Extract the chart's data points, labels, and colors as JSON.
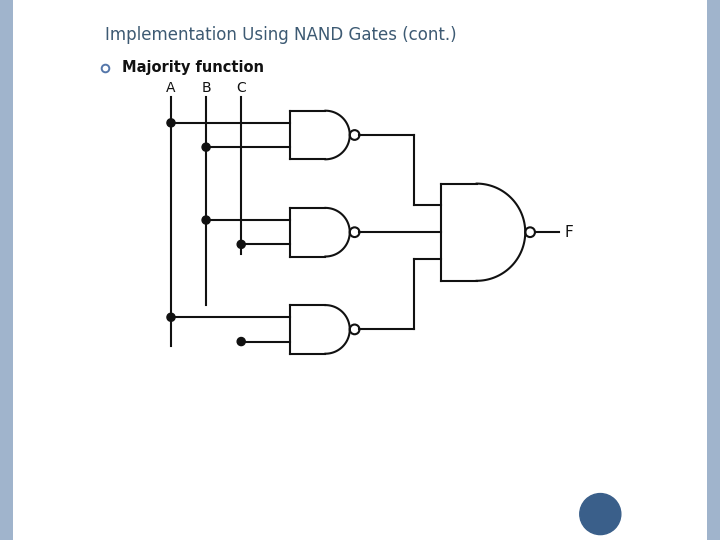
{
  "title_parts": [
    {
      "text": "I",
      "size": 14,
      "small": false
    },
    {
      "text": "MPLEMENTATION ",
      "size": 10,
      "small": true
    },
    {
      "text": "U",
      "size": 14,
      "small": false
    },
    {
      "text": "SING ",
      "size": 10,
      "small": true
    },
    {
      "text": "NAND ",
      "size": 14,
      "small": false
    },
    {
      "text": "G",
      "size": 14,
      "small": false
    },
    {
      "text": "ATES (",
      "size": 10,
      "small": true
    },
    {
      "text": "CONT.",
      "size": 10,
      "small": true
    },
    {
      "text": ")",
      "size": 10,
      "small": true
    }
  ],
  "title_str": "IMPLEMENTATION USING NAND GATES (CONT.)",
  "subtitle": "Majority function",
  "title_color": "#3d5a73",
  "background_color": "#ffffff",
  "panel_color": "#ffffff",
  "border_color": "#a0b4cc",
  "bullet_color": "#5577aa",
  "text_color": "#111111",
  "circle_color": "#3a5f8a",
  "line_color": "#111111",
  "input_labels": [
    "A",
    "B",
    "C"
  ],
  "output_label": "F"
}
